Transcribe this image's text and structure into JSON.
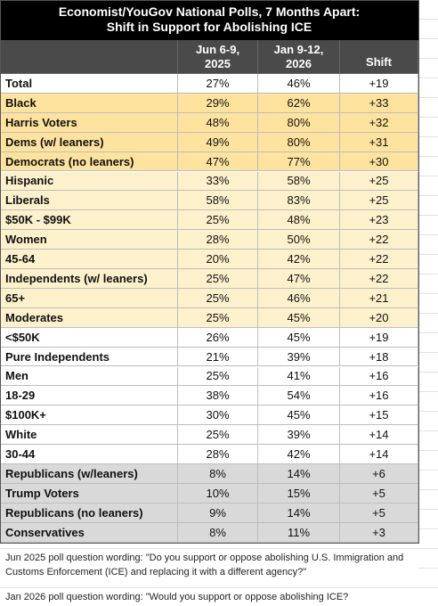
{
  "header": {
    "title": [
      "Economist/YouGov National Polls, 7 Months Apart:",
      "Shift in Support for Abolishing ICE"
    ],
    "columns": [
      "Jun 6-9, 2025",
      "Jan 9-12, 2026",
      "Shift"
    ]
  },
  "table": {
    "sections": [
      {
        "rows": [
          [
            "Total",
            "27%",
            "46%",
            "+19"
          ]
        ]
      },
      {
        "rows": [
          [
            "Black",
            "29%",
            "62%",
            "+33"
          ],
          [
            "Harris Voters",
            "48%",
            "80%",
            "+32"
          ],
          [
            "Dems (w/ leaners)",
            "49%",
            "80%",
            "+31"
          ],
          [
            "Democrats (no leaners)",
            "47%",
            "77%",
            "+30"
          ]
        ]
      },
      {
        "rows": [
          [
            "Hispanic",
            "33%",
            "58%",
            "+25"
          ],
          [
            "Liberals",
            "58%",
            "83%",
            "+25"
          ],
          [
            "$50K - $99K",
            "25%",
            "48%",
            "+23"
          ],
          [
            "Women",
            "28%",
            "50%",
            "+22"
          ],
          [
            "45-64",
            "20%",
            "42%",
            "+22"
          ],
          [
            "Independents (w/ leaners)",
            "25%",
            "47%",
            "+22"
          ],
          [
            "65+",
            "25%",
            "46%",
            "+21"
          ],
          [
            "Moderates",
            "25%",
            "45%",
            "+20"
          ]
        ]
      },
      {
        "rows": [
          [
            "<$50K",
            "26%",
            "45%",
            "+19"
          ],
          [
            "Pure Independents",
            "21%",
            "39%",
            "+18"
          ],
          [
            "Men",
            "25%",
            "41%",
            "+16"
          ],
          [
            "18-29",
            "38%",
            "54%",
            "+16"
          ],
          [
            "$100K+",
            "30%",
            "45%",
            "+15"
          ],
          [
            "White",
            "25%",
            "39%",
            "+14"
          ],
          [
            "30-44",
            "28%",
            "42%",
            "+14"
          ]
        ]
      },
      {
        "rows": [
          [
            "Republicans (w/leaners)",
            "8%",
            "14%",
            "+6"
          ],
          [
            "Trump Voters",
            "10%",
            "15%",
            "+5"
          ],
          [
            "Republicans (no leaners)",
            "9%",
            "14%",
            "+5"
          ],
          [
            "Conservatives",
            "8%",
            "11%",
            "+3"
          ]
        ]
      }
    ]
  },
  "notes": [
    "Jun 2025 poll question wording: \"Do you support or oppose abolishing U.S. Immigration and Customs Enforcement (ICE) and replacing it with a different agency?\"",
    "Jan 2026 poll question wording: \"Would you support or oppose abolishing ICE?"
  ]
}
